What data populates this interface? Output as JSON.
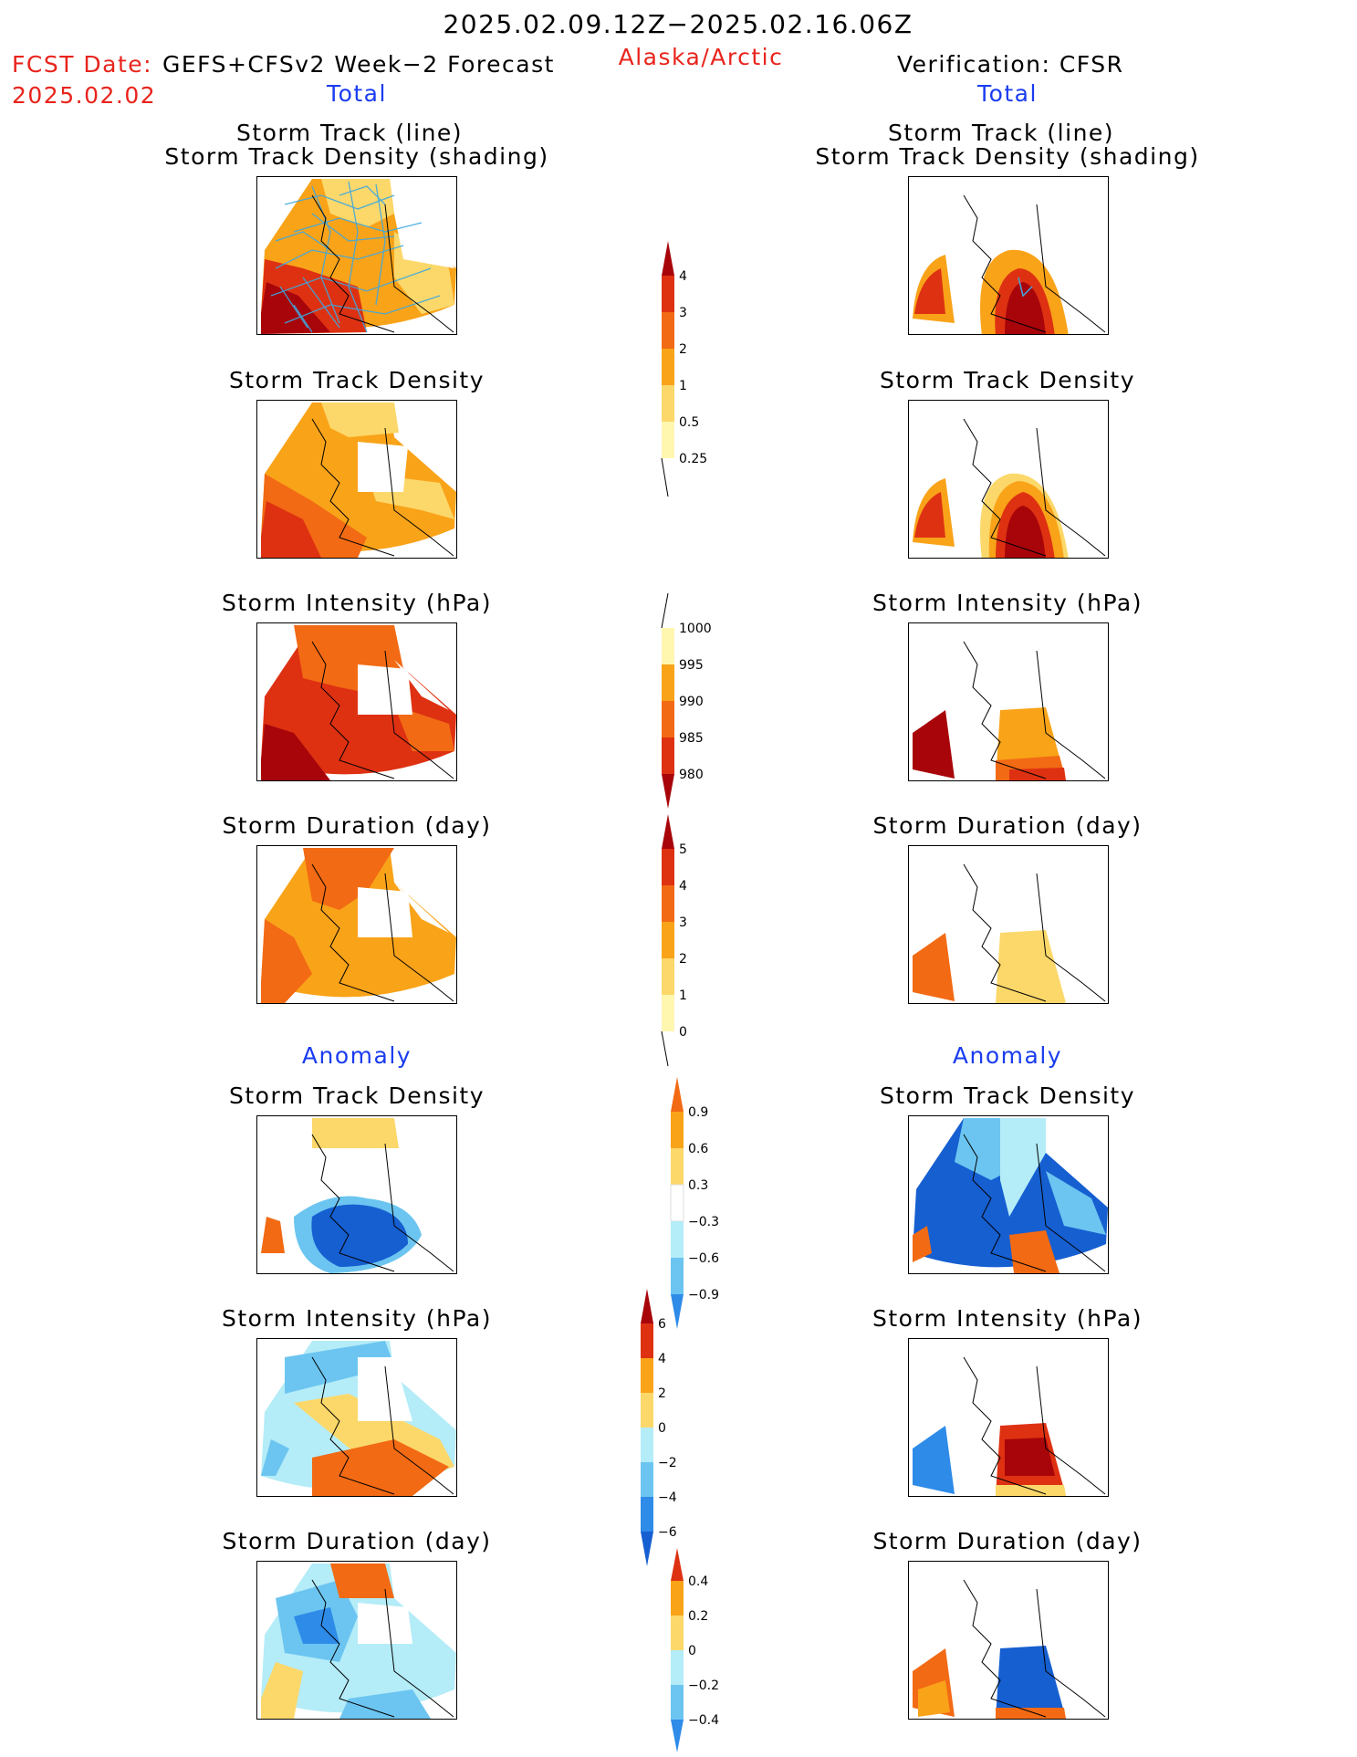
{
  "header": {
    "date_range": "2025.02.09.12Z−2025.02.16.06Z",
    "fcst_label": "FCST Date:",
    "fcst_model": "GEFS+CFSv2 Week−2 Forecast",
    "fcst_date": "2025.02.02",
    "region": "Alaska/Arctic",
    "verification": "Verification: CFSR"
  },
  "sections": {
    "total_left": "Total",
    "total_right": "Total",
    "anomaly_left": "Anomaly",
    "anomaly_right": "Anomaly"
  },
  "panel_titles": {
    "track_line": "Storm Track (line)",
    "track_shading": "Storm Track Density (shading)",
    "track_density": "Storm Track Density",
    "intensity": "Storm Intensity (hPa)",
    "duration": "Storm Duration (day)"
  },
  "colorbars": {
    "density_total": [
      "4",
      "3",
      "2",
      "1",
      "0.5",
      "0.25"
    ],
    "intensity_total": [
      "1000",
      "995",
      "990",
      "985",
      "980"
    ],
    "duration_total": [
      "5",
      "4",
      "3",
      "2",
      "1",
      "0"
    ],
    "density_anom": [
      "0.9",
      "0.6",
      "0.3",
      "−0.3",
      "−0.6",
      "−0.9"
    ],
    "intensity_anom": [
      "6",
      "4",
      "2",
      "0",
      "−2",
      "−4",
      "−6"
    ],
    "duration_anom": [
      "0.4",
      "0.2",
      "0",
      "−0.2",
      "−0.4"
    ]
  },
  "colors": {
    "warm": [
      "#fff7b0",
      "#fcd86a",
      "#f9a319",
      "#f26a14",
      "#de3112",
      "#a8050a"
    ],
    "cool": [
      "#b4ecf8",
      "#6cc5f0",
      "#2e8be8",
      "#155fd1"
    ],
    "track_line": "#3da8e0"
  }
}
